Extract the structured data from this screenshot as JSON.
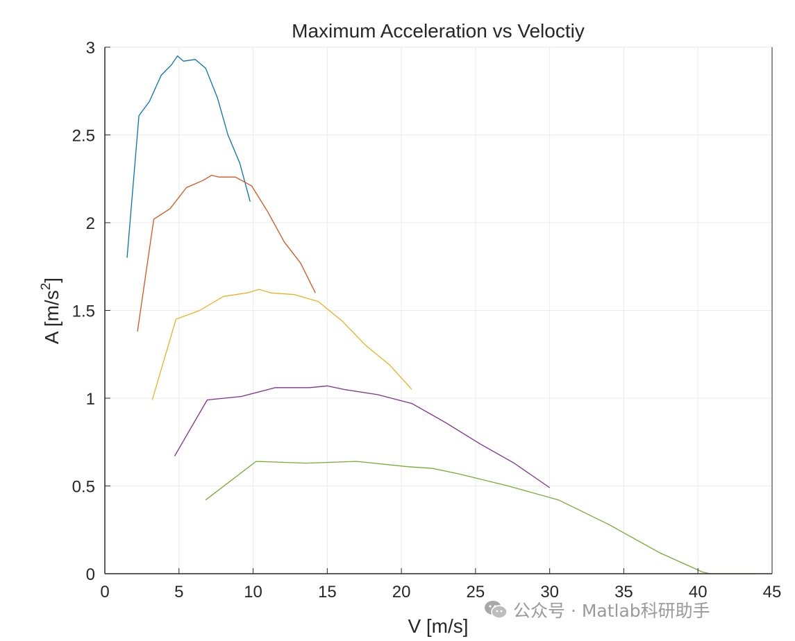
{
  "chart_data": {
    "type": "line",
    "title": "Maximum Acceleration vs Veloctiy",
    "xlabel": "V [m/s]",
    "ylabel_main": "A [m/s",
    "ylabel_sup": "2",
    "ylabel_close": "]",
    "xlim": [
      0,
      45
    ],
    "ylim": [
      0,
      3
    ],
    "xticks": [
      0,
      5,
      10,
      15,
      20,
      25,
      30,
      35,
      40,
      45
    ],
    "yticks": [
      0,
      0.5,
      1,
      1.5,
      2,
      2.5,
      3
    ],
    "ytick_labels": [
      "0",
      "0.5",
      "1",
      "1.5",
      "2",
      "2.5",
      "3"
    ],
    "grid": true,
    "series": [
      {
        "color": "#0072BD",
        "x": [
          1.5,
          2.3,
          3.0,
          3.8,
          4.5,
          4.9,
          5.3,
          6.1,
          6.8,
          7.6,
          8.3,
          9.1,
          9.8
        ],
        "y": [
          1.8,
          2.61,
          2.69,
          2.84,
          2.9,
          2.95,
          2.92,
          2.93,
          2.88,
          2.71,
          2.5,
          2.34,
          2.12
        ]
      },
      {
        "color": "#D95319",
        "x": [
          2.2,
          3.3,
          4.4,
          5.5,
          6.6,
          7.2,
          7.7,
          8.8,
          9.9,
          11.0,
          12.1,
          13.2,
          14.2
        ],
        "y": [
          1.38,
          2.02,
          2.08,
          2.2,
          2.24,
          2.27,
          2.26,
          2.26,
          2.21,
          2.06,
          1.89,
          1.77,
          1.6
        ]
      },
      {
        "color": "#EDB120",
        "x": [
          3.2,
          4.8,
          6.4,
          8.0,
          9.6,
          10.4,
          11.2,
          12.8,
          14.4,
          16.0,
          17.6,
          19.2,
          20.7
        ],
        "y": [
          0.99,
          1.45,
          1.5,
          1.58,
          1.6,
          1.62,
          1.6,
          1.59,
          1.55,
          1.44,
          1.3,
          1.19,
          1.05
        ]
      },
      {
        "color": "#7E2F8E",
        "x": [
          4.7,
          6.9,
          9.2,
          11.5,
          13.8,
          15.0,
          16.1,
          18.4,
          20.7,
          23.0,
          25.3,
          27.6,
          30.0
        ],
        "y": [
          0.67,
          0.99,
          1.01,
          1.06,
          1.06,
          1.07,
          1.05,
          1.02,
          0.97,
          0.86,
          0.74,
          0.63,
          0.49
        ]
      },
      {
        "color": "#77AC30",
        "x": [
          6.8,
          10.2,
          13.6,
          17.0,
          20.4,
          22.1,
          23.8,
          27.2,
          30.6,
          34.0,
          37.4,
          40.3,
          40.8,
          43.8
        ],
        "y": [
          0.42,
          0.64,
          0.63,
          0.64,
          0.61,
          0.6,
          0.57,
          0.5,
          0.42,
          0.28,
          0.12,
          0.01,
          0.0,
          0.0
        ]
      }
    ]
  },
  "watermark": {
    "icon": "wechat-icon",
    "text": "公众号 · Matlab科研助手"
  }
}
